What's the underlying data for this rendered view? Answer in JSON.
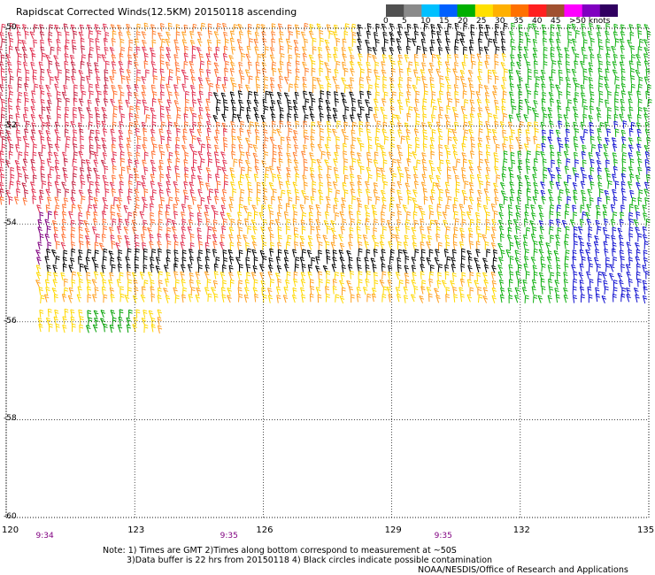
{
  "title": "Rapidscat Corrected Winds(12.5KM) 20150118 ascending",
  "colorbar": {
    "labels": [
      "0",
      "5",
      "10",
      "15",
      "20",
      "25",
      "30",
      "35",
      "40",
      "45",
      ">50 knots"
    ],
    "colors": [
      "#505050",
      "#8a8a8a",
      "#00c0ff",
      "#0060ff",
      "#00b000",
      "#ffe000",
      "#ffb000",
      "#ff7000",
      "#ff2020",
      "#a05030",
      "#ff00ff",
      "#8000c0",
      "#300060"
    ]
  },
  "map": {
    "lon_range": [
      120,
      135
    ],
    "lat_range": [
      -60,
      -50
    ],
    "lon_ticks": [
      "120",
      "123",
      "126",
      "129",
      "132",
      "135"
    ],
    "lat_ticks": [
      "-50",
      "-52",
      "-54",
      "-56",
      "-58",
      "-60"
    ],
    "lat_tick_values": [
      -50,
      -52,
      -54,
      -56,
      -58,
      -60
    ],
    "lon_tick_values": [
      120,
      123,
      126,
      129,
      132,
      135
    ],
    "grid": true,
    "times": [
      {
        "label": "9:34",
        "lon": 120.9
      },
      {
        "label": "9:35",
        "lon": 125.2
      },
      {
        "label": "9:35",
        "lon": 130.2
      }
    ]
  },
  "notes": {
    "line1": "Note: 1) Times are GMT 2)Times along bottom correspond to measurement at ~50S",
    "line2": "3)Data buffer is 22 hrs from 20150118 4) Black circles indicate possible contamination",
    "credit": "NOAA/NESDIS/Office of Research and Applications"
  }
}
